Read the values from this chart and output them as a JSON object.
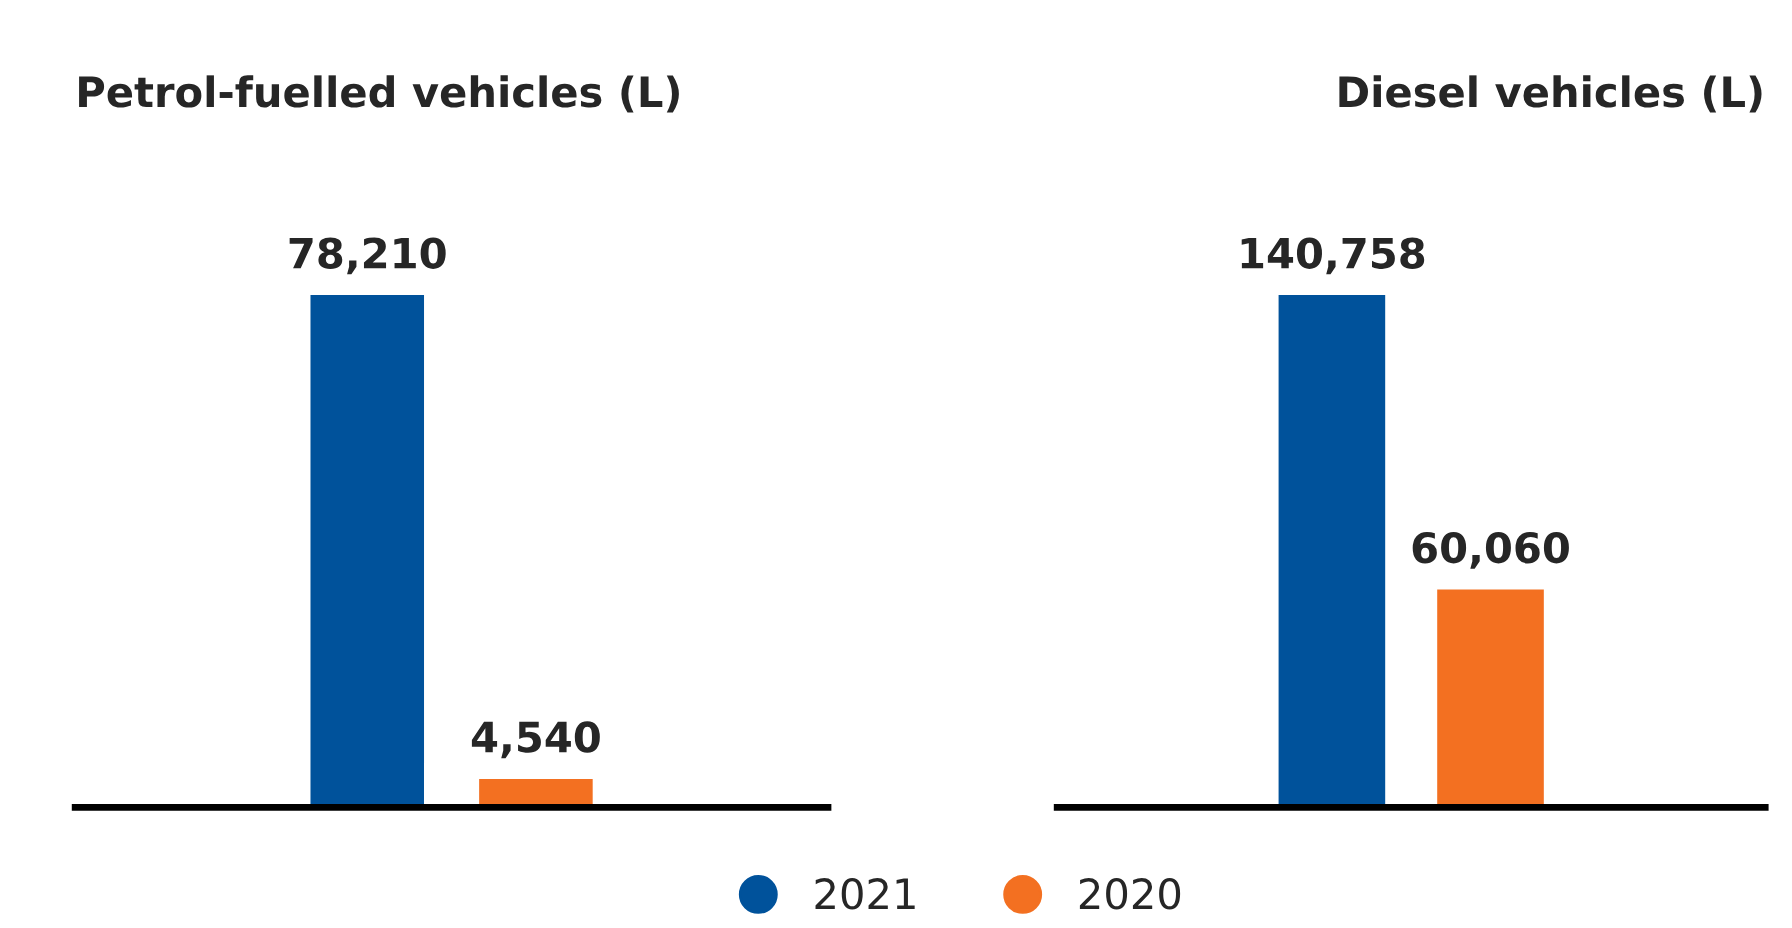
{
  "chart_data": [
    {
      "type": "bar",
      "title": "Petrol-fuelled vehicles (L)",
      "categories": [
        null
      ],
      "series": [
        {
          "name": "2021",
          "color": "#00529b",
          "values": [
            78210
          ],
          "value_labels": [
            "78,210"
          ]
        },
        {
          "name": "2020",
          "color": "#f37021",
          "values": [
            4540
          ],
          "value_labels": [
            "4,540"
          ]
        }
      ],
      "legend": "bottom",
      "grid": false
    },
    {
      "type": "bar",
      "title": "Diesel vehicles (L)",
      "categories": [
        null
      ],
      "series": [
        {
          "color": "#00529b",
          "values": [
            140758
          ],
          "value_labels": [
            "140,758"
          ]
        },
        {
          "color": "#f37021",
          "values": [
            60060
          ],
          "value_labels": [
            "60,060"
          ]
        }
      ],
      "grid": false
    }
  ]
}
